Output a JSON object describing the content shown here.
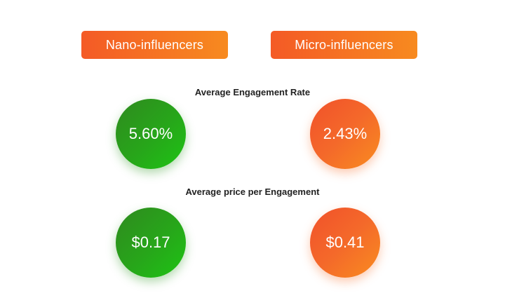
{
  "categories": {
    "nano": "Nano-influencers",
    "micro": "Micro-influencers"
  },
  "metrics": {
    "engagement_rate": {
      "label": "Average Engagement Rate",
      "nano": "5.60%",
      "micro": "2.43%"
    },
    "price_per_engagement": {
      "label": "Average price per Engagement",
      "nano": "$0.17",
      "micro": "$0.41"
    }
  },
  "colors": {
    "orange_accent": "#f45a26",
    "orange_light": "#f98c20",
    "green_accent": "#27a61a",
    "text_dark": "#222222"
  }
}
